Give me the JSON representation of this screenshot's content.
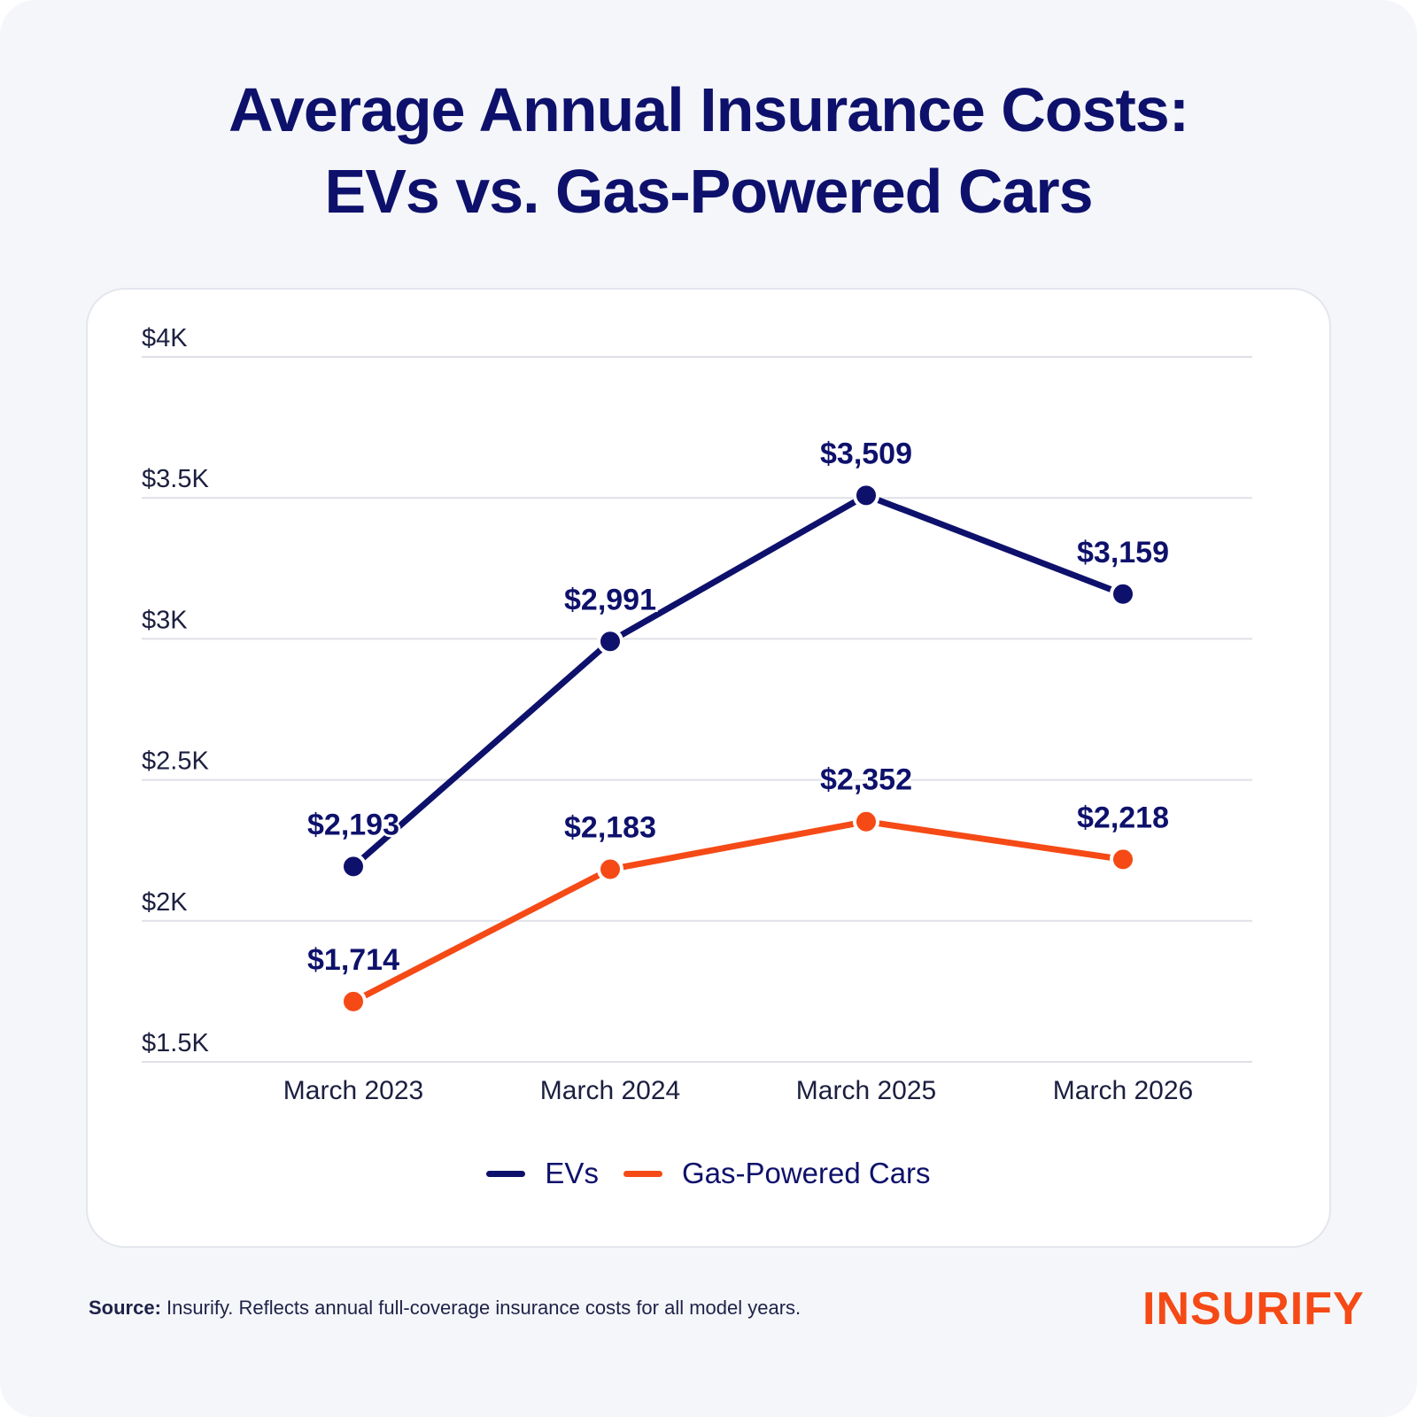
{
  "title_lines": [
    "Average Annual Insurance Costs:",
    "EVs vs. Gas-Powered Cars"
  ],
  "chart_data": {
    "type": "line",
    "categories": [
      "March 2023",
      "March 2024",
      "March 2025",
      "March 2026"
    ],
    "series": [
      {
        "name": "EVs",
        "values": [
          2193,
          2991,
          3509,
          3159
        ],
        "labels": [
          "$2,193",
          "$2,991",
          "$3,509",
          "$3,159"
        ],
        "color": "#0e116b"
      },
      {
        "name": "Gas-Powered Cars",
        "values": [
          1714,
          2183,
          2352,
          2218
        ],
        "labels": [
          "$1,714",
          "$2,183",
          "$2,352",
          "$2,218"
        ],
        "color": "#f54a16"
      }
    ],
    "ylim": [
      1500,
      4000
    ],
    "yticks": [
      1500,
      2000,
      2500,
      3000,
      3500,
      4000
    ],
    "ytick_labels": [
      "$1.5K",
      "$2K",
      "$2.5K",
      "$3K",
      "$3.5K",
      "$4K"
    ],
    "grid": true,
    "legend_position": "bottom-center"
  },
  "legend": [
    {
      "label": "EVs",
      "color": "#0e116b"
    },
    {
      "label": "Gas-Powered Cars",
      "color": "#f54a16"
    }
  ],
  "footer": {
    "source_label": "Source:",
    "source_text": " Insurify. Reflects annual full-coverage insurance costs for all model years."
  },
  "logo_text": "INSURIFY"
}
